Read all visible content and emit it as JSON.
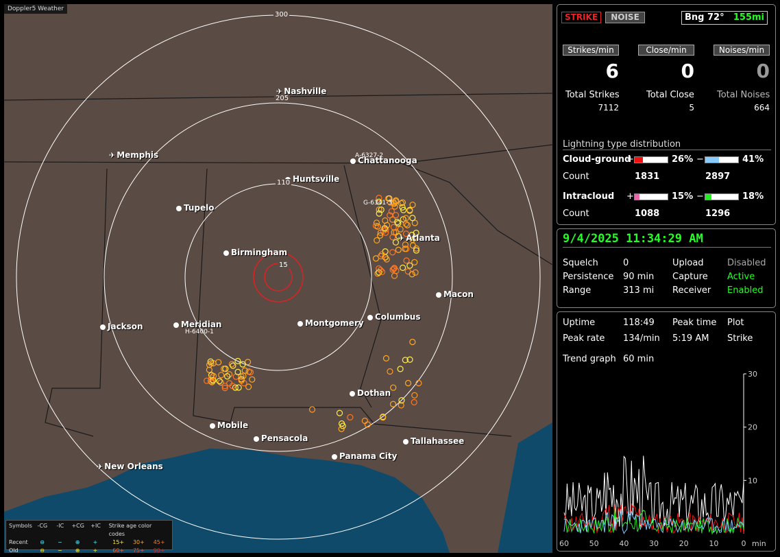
{
  "app": {
    "title": "Doppler5 Weather"
  },
  "map": {
    "range_rings": [
      {
        "label": "15"
      },
      {
        "label": "110"
      },
      {
        "label": "205"
      },
      {
        "label": "300"
      }
    ],
    "cities": [
      {
        "name": "Nashville",
        "airport": true
      },
      {
        "name": "Memphis",
        "airport": true
      },
      {
        "name": "Chattanooga",
        "airport": false
      },
      {
        "name": "Huntsville",
        "airport": false
      },
      {
        "name": "Tupelo",
        "airport": false
      },
      {
        "name": "Atlanta",
        "airport": true
      },
      {
        "name": "Birmingham",
        "airport": false
      },
      {
        "name": "Macon",
        "airport": false
      },
      {
        "name": "Columbus",
        "airport": false
      },
      {
        "name": "Montgomery",
        "airport": false
      },
      {
        "name": "Jackson",
        "airport": false
      },
      {
        "name": "Meridian",
        "airport": false
      },
      {
        "name": "Dothan",
        "airport": false
      },
      {
        "name": "Mobile",
        "airport": false
      },
      {
        "name": "Pensacola",
        "airport": false
      },
      {
        "name": "Tallahassee",
        "airport": false
      },
      {
        "name": "Panama City",
        "airport": false
      },
      {
        "name": "New Orleans",
        "airport": true
      }
    ],
    "tags": [
      "A-6327-2",
      "G-6341-3",
      "H-6400-1"
    ]
  },
  "legend": {
    "symbols_label": "Symbols",
    "headers": [
      "-CG",
      "-IC",
      "+CG",
      "+IC"
    ],
    "age_title": "Strike age color codes",
    "recent_label": "Recent",
    "old_label": "Old",
    "recent_ages": [
      "15+",
      "30+",
      "45+"
    ],
    "old_ages": [
      "60+",
      "75+",
      "90+"
    ],
    "age_colors": [
      "#ffee44",
      "#ffaa22",
      "#ff7722",
      "#ff5522",
      "#ee4422",
      "#dd2222"
    ]
  },
  "status": {
    "strike_button": "STRIKE",
    "noise_button": "NOISE",
    "bearing": "Bng 72°",
    "distance": "155mi",
    "strikes_min_label": "Strikes/min",
    "close_min_label": "Close/min",
    "noises_min_label": "Noises/min",
    "strikes_min": "6",
    "close_min": "0",
    "noises_min": "0",
    "total_strikes_label": "Total Strikes",
    "total_close_label": "Total Close",
    "total_noises_label": "Total Noises",
    "total_strikes": "7112",
    "total_close": "5",
    "total_noises": "664"
  },
  "distribution": {
    "title": "Lightning type distribution",
    "cg_label": "Cloud-ground",
    "ic_label": "Intracloud",
    "count_label": "Count",
    "plus": "+",
    "minus": "−",
    "cg_pos_pct": "26%",
    "cg_neg_pct": "41%",
    "cg_pos_count": "1831",
    "cg_neg_count": "2897",
    "ic_pos_pct": "15%",
    "ic_neg_pct": "18%",
    "ic_pos_count": "1088",
    "ic_neg_count": "1296",
    "cg_pos_value": 26,
    "cg_neg_value": 41,
    "ic_pos_value": 15,
    "ic_neg_value": 18,
    "cg_pos_color": "#ee1111",
    "cg_neg_color": "#88ccff",
    "ic_pos_color": "#ee66aa",
    "ic_neg_color": "#22ee22"
  },
  "info": {
    "datetime": "9/4/2025 11:34:29 AM",
    "squelch_label": "Squelch",
    "squelch": "0",
    "upload_label": "Upload",
    "upload": "Disabled",
    "persistence_label": "Persistence",
    "persistence": "90 min",
    "capture_label": "Capture",
    "capture": "Active",
    "range_label": "Range",
    "range": "313 mi",
    "receiver_label": "Receiver",
    "receiver": "Enabled"
  },
  "stats": {
    "uptime_label": "Uptime",
    "uptime": "118:49",
    "peak_time_label": "Peak time",
    "plot_label": "Plot",
    "peak_rate_label": "Peak rate",
    "peak_rate": "134/min",
    "peak_time": "5:19 AM",
    "plot": "Strike",
    "trend_label": "Trend graph",
    "trend_value": "60 min"
  },
  "chart_data": {
    "type": "line",
    "x": [
      60,
      50,
      40,
      30,
      20,
      10,
      0
    ],
    "xlabel": "min",
    "yticks": [
      10,
      20,
      30
    ],
    "ylim": [
      0,
      30
    ],
    "xlim": [
      60,
      0
    ]
  }
}
